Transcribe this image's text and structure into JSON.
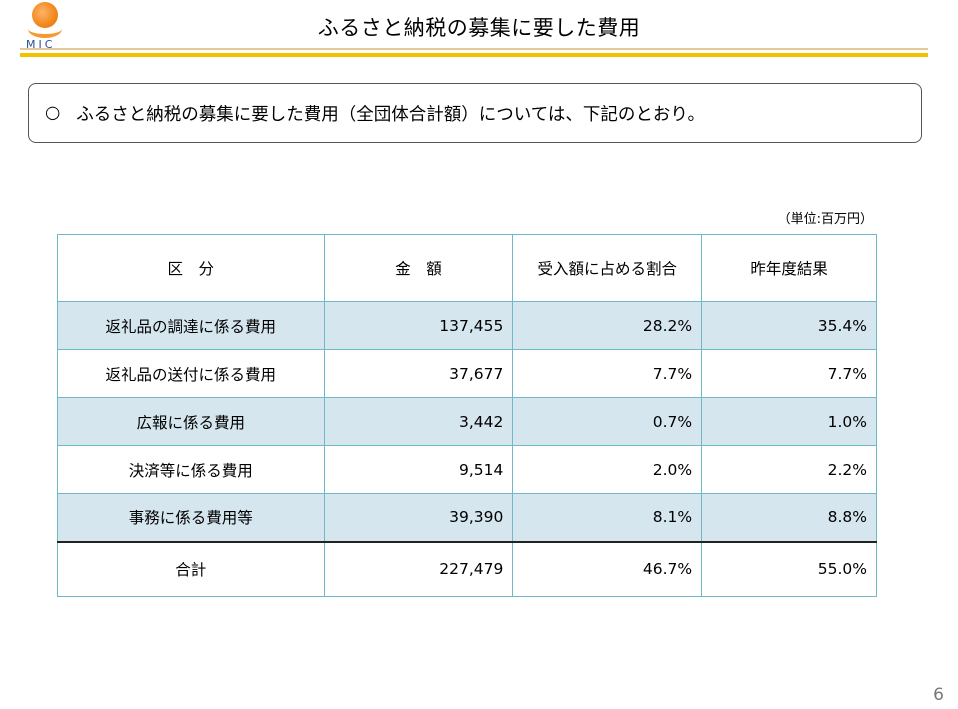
{
  "logo": {
    "text": "MIC"
  },
  "title": "ふるさと納税の募集に要した費用",
  "callout": {
    "bullet": "○",
    "text": "ふるさと納税の募集に要した費用（全団体合計額）については、下記のとおり。"
  },
  "unit": "（単位:百万円）",
  "table": {
    "headers": [
      "区　分",
      "金　額",
      "受入額に占める割合",
      "昨年度結果"
    ],
    "rows": [
      [
        "返礼品の調達に係る費用",
        "137,455",
        "28.2%",
        "35.4%"
      ],
      [
        "返礼品の送付に係る費用",
        "37,677",
        "7.7%",
        "7.7%"
      ],
      [
        "広報に係る費用",
        "3,442",
        "0.7%",
        "1.0%"
      ],
      [
        "決済等に係る費用",
        "9,514",
        "2.0%",
        "2.2%"
      ],
      [
        "事務に係る費用等",
        "39,390",
        "8.1%",
        "8.8%"
      ]
    ],
    "total": [
      "合計",
      "227,479",
      "46.7%",
      "55.0%"
    ]
  },
  "page_number": "6",
  "colors": {
    "accent_rule": "#f2c400",
    "table_border": "#6fb7c9",
    "row_shade": "#d6e6ef"
  }
}
